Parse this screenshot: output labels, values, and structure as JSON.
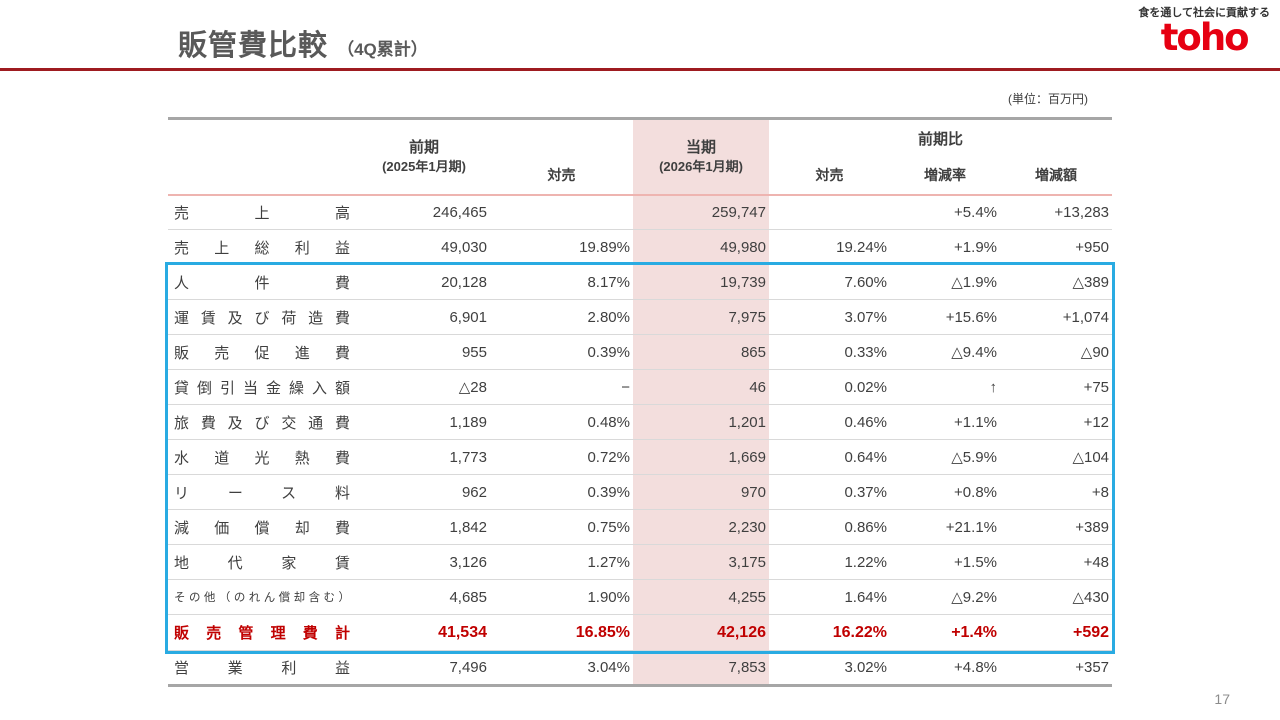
{
  "page": {
    "title": "販管費比較",
    "title_suffix": "（4Q累計）",
    "unit_note": "(単位：百万円)",
    "page_number": "17",
    "logo": {
      "tagline": "食を通して社会に貢献する",
      "brand": "toho"
    }
  },
  "table": {
    "header": {
      "prev_period": "前期",
      "prev_period_sub": "(2025年1月期)",
      "prev_ratio": "対売",
      "curr_period": "当期",
      "curr_period_sub": "(2026年1月期)",
      "yoy_group": "前期比",
      "yoy_ratio": "対売",
      "change_rate": "増減率",
      "change_amount": "増減額"
    },
    "rows": [
      {
        "label": "売上高",
        "prev": "246,465",
        "prev_ratio": "",
        "curr": "259,747",
        "curr_ratio": "",
        "rate": "+5.4%",
        "amount": "+13,283",
        "type": "normal"
      },
      {
        "label": "売上総利益",
        "prev": "49,030",
        "prev_ratio": "19.89%",
        "curr": "49,980",
        "curr_ratio": "19.24%",
        "rate": "+1.9%",
        "amount": "+950",
        "type": "normal"
      },
      {
        "label": "人件費",
        "prev": "20,128",
        "prev_ratio": "8.17%",
        "curr": "19,739",
        "curr_ratio": "7.60%",
        "rate": "△1.9%",
        "amount": "△389",
        "type": "normal"
      },
      {
        "label": "運賃及び荷造費",
        "prev": "6,901",
        "prev_ratio": "2.80%",
        "curr": "7,975",
        "curr_ratio": "3.07%",
        "rate": "+15.6%",
        "amount": "+1,074",
        "type": "normal"
      },
      {
        "label": "販売促進費",
        "prev": "955",
        "prev_ratio": "0.39%",
        "curr": "865",
        "curr_ratio": "0.33%",
        "rate": "△9.4%",
        "amount": "△90",
        "type": "normal"
      },
      {
        "label": "貸倒引当金繰入額",
        "prev": "△28",
        "prev_ratio": "−",
        "curr": "46",
        "curr_ratio": "0.02%",
        "rate": "↑",
        "amount": "+75",
        "type": "normal"
      },
      {
        "label": "旅費及び交通費",
        "prev": "1,189",
        "prev_ratio": "0.48%",
        "curr": "1,201",
        "curr_ratio": "0.46%",
        "rate": "+1.1%",
        "amount": "+12",
        "type": "normal"
      },
      {
        "label": "水道光熱費",
        "prev": "1,773",
        "prev_ratio": "0.72%",
        "curr": "1,669",
        "curr_ratio": "0.64%",
        "rate": "△5.9%",
        "amount": "△104",
        "type": "normal"
      },
      {
        "label": "リース料",
        "prev": "962",
        "prev_ratio": "0.39%",
        "curr": "970",
        "curr_ratio": "0.37%",
        "rate": "+0.8%",
        "amount": "+8",
        "type": "normal"
      },
      {
        "label": "減価償却費",
        "prev": "1,842",
        "prev_ratio": "0.75%",
        "curr": "2,230",
        "curr_ratio": "0.86%",
        "rate": "+21.1%",
        "amount": "+389",
        "type": "normal"
      },
      {
        "label": "地代家賃",
        "prev": "3,126",
        "prev_ratio": "1.27%",
        "curr": "3,175",
        "curr_ratio": "1.22%",
        "rate": "+1.5%",
        "amount": "+48",
        "type": "normal"
      },
      {
        "label": "その他（のれん償却含む）",
        "prev": "4,685",
        "prev_ratio": "1.90%",
        "curr": "4,255",
        "curr_ratio": "1.64%",
        "rate": "△9.2%",
        "amount": "△430",
        "type": "normal",
        "small": true
      },
      {
        "label": "販売管理費計",
        "prev": "41,534",
        "prev_ratio": "16.85%",
        "curr": "42,126",
        "curr_ratio": "16.22%",
        "rate": "+1.4%",
        "amount": "+592",
        "type": "total"
      },
      {
        "label": "営業利益",
        "prev": "7,496",
        "prev_ratio": "3.04%",
        "curr": "7,853",
        "curr_ratio": "3.02%",
        "rate": "+4.8%",
        "amount": "+357",
        "type": "normal"
      }
    ],
    "highlight_box": {
      "first_row_index": 2,
      "last_row_index": 12,
      "color": "#29abe2"
    }
  },
  "colors": {
    "accent_red": "#9e1b20",
    "brand_red": "#e60012",
    "highlight_cyan": "#29abe2",
    "current_pink": "#f3dedd",
    "salmon_line": "#eeb4b0",
    "total_red": "#c00000"
  }
}
